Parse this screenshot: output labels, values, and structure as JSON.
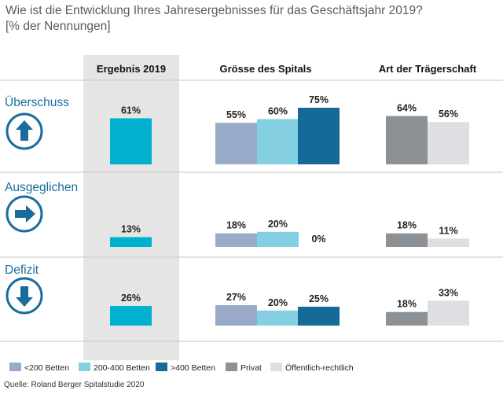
{
  "title": "Wie ist die Entwicklung Ihres Jahresergebnisses für das Geschäftsjahr 2019?",
  "subtitle": "[% der Nennungen]",
  "source": "Quelle: Roland Berger Spitalstudie 2020",
  "colors": {
    "total": "#00b0cf",
    "lt200": "#98aac8",
    "mid": "#84d0e2",
    "gt400": "#156b97",
    "privat": "#8c9196",
    "public": "#dddfe2",
    "rowLabel": "#1a6c9f",
    "panelBg": "#e5e5e5",
    "divider": "#c6c6c6",
    "icon": "#1a6c9f"
  },
  "chart_data": {
    "type": "bar",
    "columns": [
      "Ergebnis 2019",
      "Grösse des Spitals",
      "Art der Trägerschaft"
    ],
    "categories": [
      "Überschuss",
      "Ausgeglichen",
      "Defizit"
    ],
    "icons": [
      "arrow-up-icon",
      "arrow-right-icon",
      "arrow-down-icon"
    ],
    "series": [
      {
        "key": "total",
        "group": "Ergebnis 2019",
        "values": [
          61,
          13,
          26
        ]
      },
      {
        "key": "lt200",
        "group": "Grösse des Spitals",
        "name": "<200 Betten",
        "values": [
          55,
          18,
          27
        ]
      },
      {
        "key": "mid",
        "group": "Grösse des Spitals",
        "name": "200-400 Betten",
        "values": [
          60,
          20,
          20
        ]
      },
      {
        "key": "gt400",
        "group": "Grösse des Spitals",
        "name": ">400 Betten",
        "values": [
          75,
          0,
          25
        ]
      },
      {
        "key": "privat",
        "group": "Art der Trägerschaft",
        "name": "Privat",
        "values": [
          64,
          18,
          18
        ]
      },
      {
        "key": "public",
        "group": "Art der Trägerschaft",
        "name": "Öffentlich-rechtlich",
        "values": [
          56,
          11,
          33
        ]
      }
    ],
    "value_suffix": "%",
    "legend": [
      "<200 Betten",
      "200-400 Betten",
      ">400 Betten",
      "Privat",
      "Öffentlich-rechtlich"
    ]
  }
}
